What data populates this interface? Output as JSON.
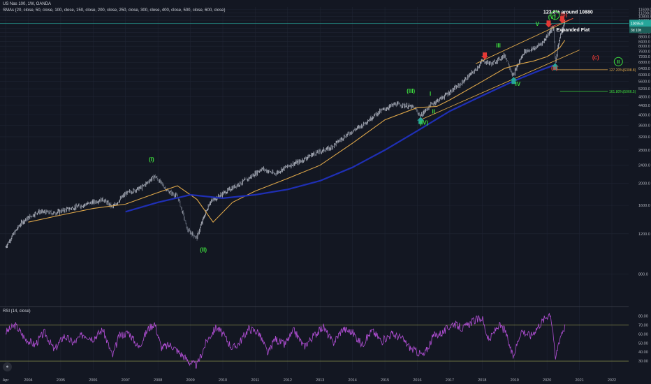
{
  "header": {
    "symbol_line": "US Nas 100, 1W, OANDA",
    "sma_line": "SMAs (20, close, 50, close, 100, close, 150, close, 200, close, 250, close, 300, close, 400, close, 500, close, 600, close)",
    "rsi_label": "RSI (14, close)",
    "logo_icon": "tradingview-logo-icon"
  },
  "colors": {
    "background": "#131722",
    "grid": "#1f2433",
    "candles_up": "#9aa3b5",
    "sma_orange": "#e0a84a",
    "sma_blue": "#1f2fb5",
    "channel_orange": "#e0a84a",
    "rsi_line": "#b24fd6",
    "rsi_band": "#8a8f4a",
    "price_line": "#26a69a",
    "wave_green": "#3ddc3d",
    "wave_red": "#e53935"
  },
  "chart_data": [
    {
      "type": "line",
      "panel": "price",
      "x_axis_labels": [
        "Apr",
        "2004",
        "2005",
        "2006",
        "2007",
        "2008",
        "2009",
        "2010",
        "2011",
        "2012",
        "2013",
        "2014",
        "2015",
        "2016",
        "2017",
        "2018",
        "2019",
        "2020",
        "2021",
        "2022"
      ],
      "x_axis_years": [
        2003.3,
        2004,
        2005,
        2006,
        2007,
        2008,
        2009,
        2010,
        2011,
        2012,
        2013,
        2014,
        2015,
        2016,
        2017,
        2018,
        2019,
        2020,
        2021,
        2022
      ],
      "y_axis_ticks": [
        800.0,
        1200.0,
        1600.0,
        2000.0,
        2400.0,
        2800.0,
        3200.0,
        3600.0,
        4000.0,
        4400.0,
        4800.0,
        5200.0,
        5600.0,
        6000.0,
        6400.0,
        6800.0,
        7200.0,
        7600.0,
        8000.0,
        8400.0,
        8800.0,
        9200.0,
        9600.0,
        10000.0,
        10400.0,
        10800.0,
        11200.0,
        11600.0
      ],
      "y_axis_label_text": [
        "800.0",
        "1200.0",
        "1600.0",
        "2000.0",
        "2400.0",
        "2800.0",
        "3200.0",
        "3600.0",
        "4000.0",
        "4400.0",
        "4800.0",
        "5200.0",
        "5600.0",
        "6000.0",
        "6400.0",
        "6800.0",
        "7200.0",
        "7600.0",
        "8000.0",
        "8400.0",
        "8800.0",
        "9200.0",
        "9600.0",
        "10000.0",
        "10400.0",
        "10800.0",
        "11200.0",
        "11600.0"
      ],
      "ylim": [
        600,
        11900
      ],
      "current_price": {
        "value": 10095,
        "label": "10095.8",
        "countdown": "3d 10h"
      },
      "series": [
        {
          "name": "",
          "kind": "price",
          "color": "#9aa3b5",
          "x": [
            2003.3,
            2003.8,
            2004.3,
            2004.8,
            2005.3,
            2005.8,
            2006.3,
            2006.6,
            2007.0,
            2007.5,
            2007.9,
            2008.3,
            2008.6,
            2008.9,
            2009.2,
            2009.6,
            2010.0,
            2010.4,
            2010.8,
            2011.2,
            2011.6,
            2012.0,
            2012.4,
            2012.8,
            2013.3,
            2013.8,
            2014.3,
            2014.8,
            2015.3,
            2015.6,
            2015.9,
            2016.1,
            2016.4,
            2016.8,
            2017.3,
            2017.8,
            2018.0,
            2018.3,
            2018.7,
            2018.95,
            2019.3,
            2019.6,
            2019.9,
            2020.1,
            2020.2,
            2020.25,
            2020.4,
            2020.5,
            2020.55
          ],
          "y": [
            1050,
            1350,
            1500,
            1480,
            1550,
            1620,
            1700,
            1570,
            1800,
            1920,
            2150,
            1850,
            1750,
            1250,
            1150,
            1650,
            1800,
            1950,
            2100,
            2320,
            2200,
            2380,
            2500,
            2700,
            2850,
            3250,
            3600,
            4100,
            4450,
            4400,
            4300,
            3950,
            4400,
            4800,
            5400,
            6300,
            6900,
            6700,
            7300,
            5900,
            7600,
            7800,
            8400,
            9400,
            9700,
            6650,
            8900,
            9700,
            10300
          ]
        },
        {
          "name": "",
          "kind": "sma",
          "color": "#e0a84a",
          "x": [
            2004.0,
            2005.0,
            2006.0,
            2007.0,
            2007.9,
            2008.6,
            2009.2,
            2009.7,
            2010.3,
            2011.0,
            2012.0,
            2013.0,
            2014.0,
            2015.0,
            2016.0,
            2016.6,
            2017.0,
            2018.0,
            2018.7,
            2019.2,
            2019.6,
            2020.0,
            2020.2,
            2020.4,
            2020.55
          ],
          "y": [
            1350,
            1450,
            1550,
            1620,
            1800,
            1950,
            1700,
            1350,
            1650,
            1850,
            2100,
            2400,
            3000,
            3800,
            4300,
            4350,
            4650,
            5600,
            6400,
            6700,
            6900,
            7200,
            7500,
            7900,
            8500
          ]
        },
        {
          "name": "",
          "kind": "sma",
          "color": "#1f2fb5",
          "x": [
            2007.0,
            2008.0,
            2009.0,
            2010.0,
            2011.0,
            2012.0,
            2013.0,
            2014.0,
            2015.0,
            2016.0,
            2017.0,
            2018.0,
            2019.0,
            2019.7,
            2020.2
          ],
          "y": [
            1500,
            1650,
            1780,
            1720,
            1780,
            1880,
            2050,
            2350,
            2800,
            3400,
            4150,
            4850,
            5650,
            6200,
            6600
          ]
        }
      ],
      "trendlines": [
        {
          "color": "#e0a84a",
          "from": [
            2016.1,
            3800
          ],
          "to": [
            2021.0,
            7700
          ]
        },
        {
          "color": "#e0a84a",
          "from": [
            2017.8,
            6700
          ],
          "to": [
            2020.8,
            10600
          ]
        },
        {
          "color": "#e53935",
          "from": [
            2020.1,
            9700
          ],
          "to": [
            2020.8,
            10600
          ]
        }
      ],
      "levels": [
        {
          "label": "127.20%(6308.8)",
          "value": 6308.8,
          "color": "#e0a84a",
          "x_from": 2020.2
        },
        {
          "label": "161.80%(5066.5)",
          "value": 5066.5,
          "color": "#3ddc3d",
          "x_from": 2020.4
        }
      ],
      "annotations": [
        {
          "text": "(I)",
          "x": 2007.8,
          "y": 2500,
          "color": "#3ddc3d"
        },
        {
          "text": "(II)",
          "x": 2009.4,
          "y": 1000,
          "color": "#3ddc3d"
        },
        {
          "text": "(III)",
          "x": 2015.8,
          "y": 5000,
          "color": "#3ddc3d"
        },
        {
          "text": "I",
          "x": 2016.4,
          "y": 4850,
          "color": "#3ddc3d"
        },
        {
          "text": "II",
          "x": 2016.5,
          "y": 4060,
          "color": "#3ddc3d"
        },
        {
          "text": "(IV)",
          "x": 2016.2,
          "y": 3620,
          "color": "#3ddc3d"
        },
        {
          "text": "III",
          "x": 2018.5,
          "y": 7900,
          "color": "#3ddc3d"
        },
        {
          "text": "IV",
          "x": 2019.1,
          "y": 5350,
          "color": "#3ddc3d"
        },
        {
          "text": "V",
          "x": 2019.7,
          "y": 9850,
          "color": "#3ddc3d"
        },
        {
          "text": "(V)",
          "x": 2020.15,
          "y": 10570,
          "color": "#3ddc3d"
        },
        {
          "text": "(b)",
          "x": 2020.52,
          "y": 10800,
          "color": "#e53935"
        },
        {
          "text": "(a)",
          "x": 2020.23,
          "y": 6300,
          "color": "#e53935"
        },
        {
          "text": "(c)",
          "x": 2021.5,
          "y": 7000,
          "color": "#e53935"
        },
        {
          "text": "Expanded Flat",
          "x": 2020.8,
          "y": 9300,
          "color": "#ffffff"
        },
        {
          "text": "123.6% around 10880",
          "x": 2020.65,
          "y": 11120,
          "color": "#ffffff"
        }
      ],
      "circled": [
        {
          "text": "I",
          "x": 2020.25,
          "y": 10950,
          "color": "#3ddc3d"
        },
        {
          "text": "II",
          "x": 2022.2,
          "y": 6850,
          "color": "#3ddc3d"
        }
      ],
      "arrows": [
        {
          "dir": "down",
          "x": 2018.08,
          "y": 7200,
          "color": "#e53935"
        },
        {
          "dir": "down",
          "x": 2020.05,
          "y": 9950,
          "color": "#e53935"
        },
        {
          "dir": "down",
          "x": 2020.47,
          "y": 10400,
          "color": "#e53935"
        },
        {
          "dir": "up",
          "x": 2016.1,
          "y": 3800,
          "color": "#26a69a"
        },
        {
          "dir": "up",
          "x": 2018.97,
          "y": 5700,
          "color": "#26a69a"
        },
        {
          "dir": "up",
          "x": 2020.25,
          "y": 6550,
          "color": "#26a69a"
        }
      ]
    },
    {
      "type": "line",
      "panel": "rsi",
      "y_axis_ticks": [
        30.0,
        40.0,
        50.0,
        60.0,
        70.0,
        80.0
      ],
      "y_axis_label_text": [
        "30.00",
        "40.00",
        "50.00",
        "60.00",
        "70.00",
        "80.00"
      ],
      "ylim": [
        20,
        86
      ],
      "bands": [
        30,
        70
      ],
      "series": [
        {
          "name": "",
          "color": "#b24fd6",
          "x": [
            2003.3,
            2003.6,
            2003.9,
            2004.2,
            2004.5,
            2004.8,
            2005.1,
            2005.4,
            2005.7,
            2006.0,
            2006.3,
            2006.6,
            2006.8,
            2007.1,
            2007.4,
            2007.7,
            2007.9,
            2008.1,
            2008.4,
            2008.7,
            2008.8,
            2009.0,
            2009.2,
            2009.5,
            2009.8,
            2010.0,
            2010.3,
            2010.5,
            2010.8,
            2011.1,
            2011.4,
            2011.6,
            2011.9,
            2012.2,
            2012.5,
            2012.8,
            2013.1,
            2013.4,
            2013.7,
            2014.0,
            2014.3,
            2014.6,
            2014.9,
            2015.2,
            2015.5,
            2015.8,
            2016.0,
            2016.2,
            2016.5,
            2016.8,
            2017.1,
            2017.4,
            2017.7,
            2018.0,
            2018.2,
            2018.5,
            2018.7,
            2018.95,
            2019.2,
            2019.5,
            2019.8,
            2020.0,
            2020.1,
            2020.2,
            2020.25,
            2020.35,
            2020.45,
            2020.55
          ],
          "y": [
            62,
            70,
            55,
            48,
            62,
            42,
            58,
            50,
            60,
            55,
            65,
            35,
            58,
            62,
            45,
            66,
            72,
            45,
            48,
            38,
            35,
            28,
            25,
            52,
            68,
            60,
            44,
            50,
            66,
            62,
            38,
            55,
            48,
            64,
            46,
            58,
            68,
            50,
            66,
            62,
            48,
            64,
            52,
            60,
            56,
            44,
            40,
            36,
            58,
            62,
            72,
            66,
            74,
            78,
            52,
            70,
            64,
            34,
            64,
            58,
            72,
            80,
            84,
            58,
            30,
            50,
            62,
            68
          ]
        }
      ]
    }
  ]
}
